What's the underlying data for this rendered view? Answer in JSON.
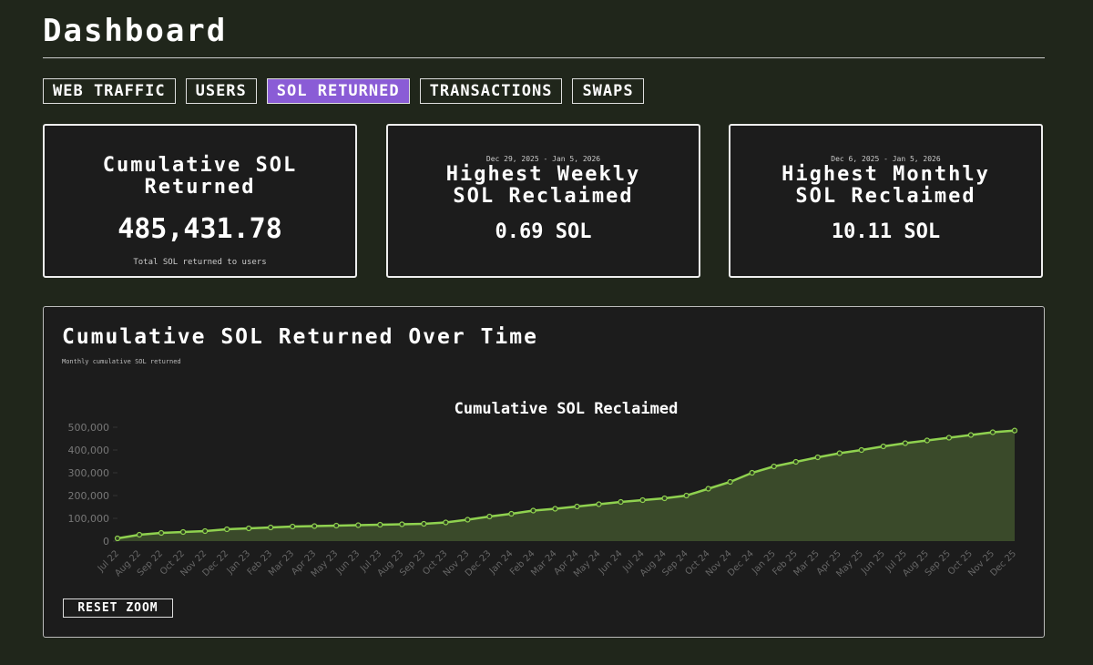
{
  "header": {
    "title": "Dashboard"
  },
  "tabs": {
    "items": [
      "WEB TRAFFIC",
      "USERS",
      "SOL RETURNED",
      "TRANSACTIONS",
      "SWAPS"
    ],
    "active": 2
  },
  "cards": [
    {
      "title": "Cumulative SOL Returned",
      "value": "485,431.78",
      "note": "Total SOL returned to users"
    },
    {
      "range": "Dec 29, 2025 - Jan 5, 2026",
      "title": "Highest Weekly SOL Reclaimed",
      "value": "0.69 SOL"
    },
    {
      "range": "Dec 6, 2025 - Jan 5, 2026",
      "title": "Highest Monthly SOL Reclaimed",
      "value": "10.11 SOL"
    }
  ],
  "panel": {
    "title": "Cumulative SOL Returned Over Time",
    "subtitle": "Monthly cumulative SOL returned",
    "button": "RESET ZOOM"
  },
  "chart_data": {
    "type": "line",
    "fill": true,
    "title": "Cumulative SOL Reclaimed",
    "color": "#8fd14f",
    "fill_color": "#3a4a2a",
    "grid": false,
    "categories": [
      "Jul 22",
      "Aug 22",
      "Sep 22",
      "Oct 22",
      "Nov 22",
      "Dec 22",
      "Jan 23",
      "Feb 23",
      "Mar 23",
      "Apr 23",
      "May 23",
      "Jun 23",
      "Jul 23",
      "Aug 23",
      "Sep 23",
      "Oct 23",
      "Nov 23",
      "Dec 23",
      "Jan 24",
      "Feb 24",
      "Mar 24",
      "Apr 24",
      "May 24",
      "Jun 24",
      "Jul 24",
      "Aug 24",
      "Sep 24",
      "Oct 24",
      "Nov 24",
      "Dec 24",
      "Jan 25",
      "Feb 25",
      "Mar 25",
      "Apr 25",
      "May 25",
      "Jun 25",
      "Jul 25",
      "Aug 25",
      "Sep 25",
      "Oct 25",
      "Nov 25",
      "Dec 25"
    ],
    "values": [
      12000,
      28000,
      36000,
      40000,
      44000,
      52000,
      56000,
      60000,
      64000,
      66000,
      68000,
      70000,
      72000,
      74000,
      76000,
      82000,
      94000,
      108000,
      120000,
      134000,
      142000,
      152000,
      162000,
      172000,
      180000,
      188000,
      200000,
      230000,
      260000,
      300000,
      328000,
      348000,
      368000,
      386000,
      400000,
      416000,
      430000,
      442000,
      454000,
      466000,
      478000,
      485432
    ],
    "ylim": [
      0,
      500000
    ],
    "yticks": [
      0,
      {
        "value": 100000,
        "label": "100,000"
      },
      {
        "value": 200000,
        "label": "200,000"
      },
      {
        "value": 300000,
        "label": "300,000"
      },
      {
        "value": 400000,
        "label": "400,000"
      },
      {
        "value": 500000,
        "label": "500,000"
      }
    ]
  }
}
